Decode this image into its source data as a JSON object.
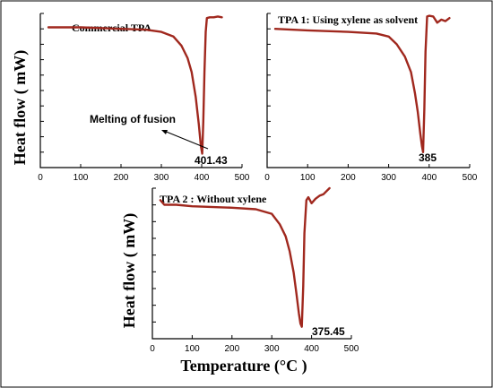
{
  "xlabel": "Temperature (°C )",
  "chart_data": [
    {
      "type": "line",
      "title": "Commercial TPA",
      "ylabel": "Heat flow ( mW)",
      "xlabel": "",
      "xlim": [
        0,
        500
      ],
      "ylim": [
        0,
        1
      ],
      "xticks": [
        "0",
        "100",
        "200",
        "300",
        "400",
        "500"
      ],
      "peak_label": "401.43",
      "annotation": "Melting of fusion",
      "annotation_target": [
        330,
        0.2
      ],
      "series": [
        {
          "x": [
            20,
            100,
            200,
            260,
            300,
            330,
            350,
            365,
            375,
            385,
            393,
            398,
            401.43,
            404,
            407,
            410,
            413,
            420,
            430,
            440,
            450
          ],
          "y": [
            0.91,
            0.91,
            0.9,
            0.895,
            0.88,
            0.85,
            0.79,
            0.71,
            0.62,
            0.46,
            0.28,
            0.14,
            0.09,
            0.3,
            0.62,
            0.88,
            0.97,
            0.975,
            0.975,
            0.98,
            0.975
          ]
        }
      ]
    },
    {
      "type": "line",
      "title": "TPA 1: Using xylene as solvent",
      "ylabel": "",
      "xlabel": "",
      "xlim": [
        0,
        500
      ],
      "ylim": [
        0,
        1
      ],
      "xticks": [
        "0",
        "100",
        "200",
        "300",
        "400",
        "500"
      ],
      "peak_label": "385",
      "annotation": "",
      "series": [
        {
          "x": [
            20,
            100,
            200,
            270,
            300,
            320,
            340,
            355,
            365,
            372,
            378,
            382,
            385,
            388,
            391,
            395,
            400,
            410,
            420,
            430,
            440,
            450
          ],
          "y": [
            0.9,
            0.89,
            0.88,
            0.87,
            0.85,
            0.8,
            0.72,
            0.62,
            0.48,
            0.36,
            0.22,
            0.14,
            0.1,
            0.38,
            0.75,
            0.98,
            0.985,
            0.98,
            0.94,
            0.96,
            0.95,
            0.97
          ]
        }
      ]
    },
    {
      "type": "line",
      "title": "TPA 2 : Without xylene",
      "ylabel": "Heat flow ( mW)",
      "xlabel": "Temperature (°C )",
      "xlim": [
        0,
        500
      ],
      "ylim": [
        0,
        1
      ],
      "xticks": [
        "0",
        "100",
        "200",
        "300",
        "400",
        "500"
      ],
      "peak_label": "375.45",
      "annotation": "",
      "series": [
        {
          "x": [
            20,
            30,
            60,
            100,
            200,
            260,
            300,
            320,
            335,
            345,
            355,
            362,
            368,
            372,
            375.45,
            379,
            382,
            387,
            392,
            400,
            410,
            420,
            430,
            445
          ],
          "y": [
            0.92,
            0.89,
            0.89,
            0.88,
            0.87,
            0.86,
            0.83,
            0.76,
            0.68,
            0.58,
            0.44,
            0.3,
            0.17,
            0.1,
            0.08,
            0.35,
            0.7,
            0.92,
            0.94,
            0.9,
            0.93,
            0.95,
            0.96,
            1.0
          ]
        }
      ]
    }
  ]
}
